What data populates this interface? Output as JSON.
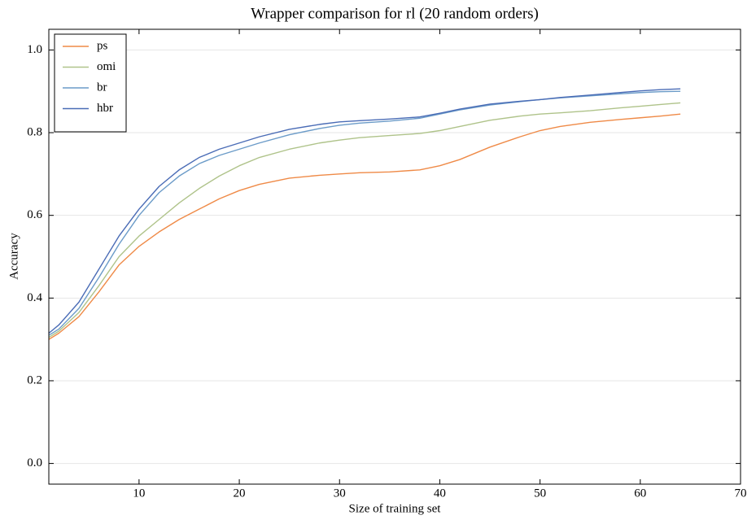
{
  "chart_data": {
    "type": "line",
    "title": "Wrapper comparison for rl (20 random orders)",
    "x_label": "Size of training set",
    "y_label": "Accuracy",
    "x": [
      1,
      2,
      4,
      6,
      8,
      10,
      12,
      14,
      16,
      18,
      20,
      22,
      25,
      28,
      30,
      32,
      35,
      38,
      40,
      42,
      45,
      48,
      50,
      52,
      55,
      58,
      60,
      62,
      64
    ],
    "series": [
      {
        "name": "ps",
        "color": "#ef8a47",
        "values": [
          0.3,
          0.315,
          0.355,
          0.415,
          0.48,
          0.525,
          0.56,
          0.59,
          0.615,
          0.64,
          0.66,
          0.675,
          0.69,
          0.697,
          0.7,
          0.703,
          0.705,
          0.71,
          0.72,
          0.735,
          0.765,
          0.79,
          0.805,
          0.815,
          0.825,
          0.832,
          0.836,
          0.84,
          0.845
        ]
      },
      {
        "name": "omi",
        "color": "#afc38a",
        "values": [
          0.305,
          0.32,
          0.365,
          0.43,
          0.5,
          0.55,
          0.59,
          0.63,
          0.665,
          0.695,
          0.72,
          0.74,
          0.76,
          0.775,
          0.782,
          0.788,
          0.793,
          0.798,
          0.805,
          0.815,
          0.83,
          0.84,
          0.845,
          0.848,
          0.853,
          0.86,
          0.864,
          0.868,
          0.872
        ]
      },
      {
        "name": "br",
        "color": "#6b9bc8",
        "values": [
          0.31,
          0.325,
          0.375,
          0.45,
          0.53,
          0.6,
          0.655,
          0.695,
          0.725,
          0.745,
          0.76,
          0.775,
          0.795,
          0.81,
          0.818,
          0.823,
          0.828,
          0.835,
          0.845,
          0.855,
          0.867,
          0.875,
          0.88,
          0.884,
          0.889,
          0.894,
          0.897,
          0.899,
          0.9
        ]
      },
      {
        "name": "hbr",
        "color": "#4a6cb6",
        "values": [
          0.315,
          0.335,
          0.39,
          0.47,
          0.55,
          0.615,
          0.67,
          0.71,
          0.74,
          0.76,
          0.775,
          0.79,
          0.808,
          0.82,
          0.826,
          0.829,
          0.833,
          0.838,
          0.847,
          0.857,
          0.869,
          0.876,
          0.88,
          0.885,
          0.891,
          0.897,
          0.901,
          0.904,
          0.906
        ]
      }
    ],
    "xlim": [
      1,
      70
    ],
    "xticks": [
      10,
      20,
      30,
      40,
      50,
      60,
      70
    ],
    "ylim": [
      -0.05,
      1.05
    ],
    "yticks": [
      {
        "value": 0,
        "label": "0.0"
      },
      0.2,
      0.4,
      0.6,
      0.8,
      {
        "value": 1,
        "label": "1.0"
      }
    ],
    "grid": true,
    "legend": "upper-left"
  }
}
